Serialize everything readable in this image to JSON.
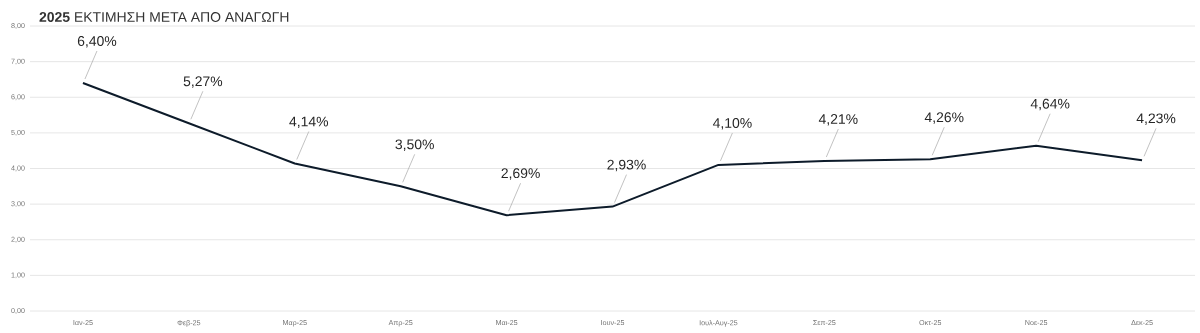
{
  "chart_data": {
    "type": "line",
    "title": "**2025** ΕΚΤΙΜΗΣΗ ΜΕΤΑ ΑΠΟ ΑΝΑΓΩΓΗ",
    "categories": [
      "Ιαν-25",
      "Φεβ-25",
      "Μαρ-25",
      "Απρ-25",
      "Μαι-25",
      "Ιουν-25",
      "Ιουλ-Αυγ-25",
      "Σεπ-25",
      "Οκτ-25",
      "Νοε-25",
      "Δεκ-25"
    ],
    "values": [
      6.4,
      5.27,
      4.14,
      3.5,
      2.69,
      2.93,
      4.1,
      4.21,
      4.26,
      4.64,
      4.23
    ],
    "value_labels": [
      "6,40%",
      "5,27%",
      "4,14%",
      "3,50%",
      "2,69%",
      "2,93%",
      "4,10%",
      "4,21%",
      "4,26%",
      "4,64%",
      "4,23%"
    ],
    "color": "#0d1b2a",
    "ylim": [
      0,
      8
    ],
    "yticks": [
      {
        "value": 0,
        "label": "0,00"
      },
      {
        "value": 1,
        "label": "1,00"
      },
      {
        "value": 2,
        "label": "2,00"
      },
      {
        "value": 3,
        "label": "3,00"
      },
      {
        "value": 4,
        "label": "4,00"
      },
      {
        "value": 5,
        "label": "5,00"
      },
      {
        "value": 6,
        "label": "6,00"
      },
      {
        "value": 7,
        "label": "7,00"
      },
      {
        "value": 8,
        "label": "8,00"
      }
    ],
    "grid": "y"
  }
}
